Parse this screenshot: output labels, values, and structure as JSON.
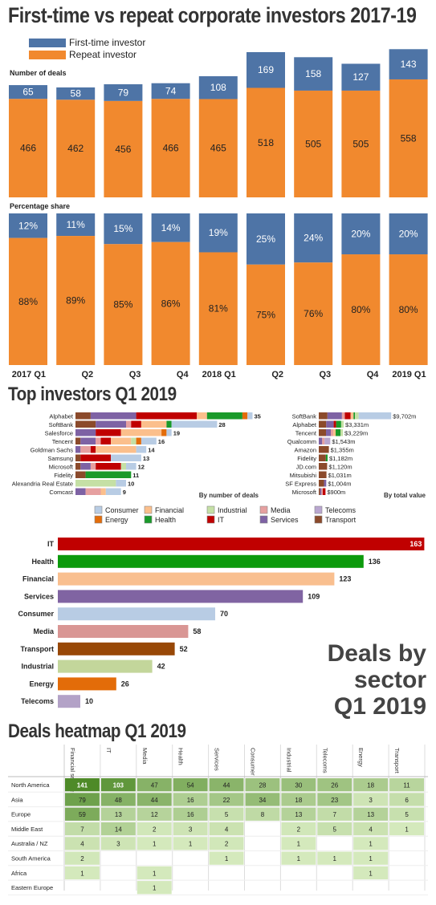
{
  "titles": {
    "main": "First-time vs repeat corporate investors 2017-19",
    "top_investors": "Top investors Q1 2019",
    "heatmap": "Deals heatmap Q1 2019",
    "deals_by_sector": [
      "Deals by",
      "sector",
      "Q1 2019"
    ]
  },
  "legend": {
    "first_time": "First-time investor",
    "repeat": "Repeat investor",
    "first_color": "#4e74a6",
    "repeat_color": "#f1892e"
  },
  "chart_data": [
    {
      "type": "bar",
      "subtitle": "Number of deals",
      "categories": [
        "2017 Q1",
        "Q2",
        "Q3",
        "Q4",
        "2018 Q1",
        "Q2",
        "Q3",
        "Q4",
        "2019 Q1"
      ],
      "series": [
        {
          "name": "First-time investor",
          "values": [
            65,
            58,
            79,
            74,
            108,
            169,
            158,
            127,
            143
          ]
        },
        {
          "name": "Repeat investor",
          "values": [
            466,
            462,
            456,
            466,
            465,
            518,
            505,
            505,
            558
          ]
        }
      ],
      "stacked": true
    },
    {
      "type": "bar",
      "subtitle": "Percentage share",
      "categories": [
        "2017 Q1",
        "Q2",
        "Q3",
        "Q4",
        "2018 Q1",
        "Q2",
        "Q3",
        "Q4",
        "2019 Q1"
      ],
      "series": [
        {
          "name": "First-time investor",
          "values": [
            "12%",
            "11%",
            "15%",
            "14%",
            "19%",
            "25%",
            "24%",
            "20%",
            "20%"
          ]
        },
        {
          "name": "Repeat investor",
          "values": [
            "88%",
            "89%",
            "85%",
            "86%",
            "81%",
            "75%",
            "76%",
            "80%",
            "80%"
          ]
        }
      ],
      "stacked": true,
      "ylim": [
        0,
        100
      ]
    },
    {
      "type": "bar",
      "orientation": "horizontal",
      "caption": "By number of deals",
      "categories": [
        "Alphabet",
        "SoftBank",
        "Salesforce",
        "Tencent",
        "Goldman Sachs",
        "Samsung",
        "Microsoft",
        "Fidelity",
        "Alexandria Real Estate",
        "Comcast"
      ],
      "values": [
        35,
        28,
        19,
        16,
        14,
        13,
        12,
        11,
        10,
        9
      ]
    },
    {
      "type": "bar",
      "orientation": "horizontal",
      "caption": "By total value",
      "categories": [
        "SoftBank",
        "Alphabet",
        "Tencent",
        "Qualcomm",
        "Amazon",
        "Fidelity",
        "JD.com",
        "Mitsubishi",
        "SF Express",
        "Microsoft"
      ],
      "value_labels": [
        "$9,702m",
        "$3,331m",
        "$3,229m",
        "$1,543m",
        "$1,355m",
        "$1,182m",
        "$1,120m",
        "$1,031m",
        "$1,004m",
        "$900m"
      ],
      "values": [
        9702,
        3331,
        3229,
        1543,
        1355,
        1182,
        1120,
        1031,
        1004,
        900
      ]
    },
    {
      "type": "bar",
      "orientation": "horizontal",
      "categories": [
        "IT",
        "Health",
        "Financial",
        "Services",
        "Consumer",
        "Media",
        "Transport",
        "Industrial",
        "Energy",
        "Telecoms"
      ],
      "values": [
        163,
        136,
        123,
        109,
        70,
        58,
        52,
        42,
        26,
        10
      ]
    },
    {
      "type": "heatmap",
      "columns": [
        "Financial services",
        "IT",
        "Media",
        "Health",
        "Services",
        "Consumer",
        "Industrial",
        "Telecoms",
        "Energy",
        "Transport"
      ],
      "rows": [
        "North America",
        "Asia",
        "Europe",
        "Middle East",
        "Australia / NZ",
        "South America",
        "Africa",
        "Eastern Europe"
      ],
      "values": [
        [
          141,
          103,
          47,
          54,
          44,
          28,
          30,
          26,
          18,
          11
        ],
        [
          79,
          48,
          44,
          16,
          22,
          34,
          18,
          23,
          3,
          6
        ],
        [
          59,
          13,
          12,
          16,
          5,
          8,
          13,
          7,
          13,
          5
        ],
        [
          7,
          14,
          2,
          3,
          4,
          null,
          2,
          5,
          4,
          1
        ],
        [
          4,
          3,
          1,
          1,
          2,
          null,
          1,
          null,
          1,
          null
        ],
        [
          2,
          null,
          null,
          null,
          1,
          null,
          1,
          1,
          1,
          null
        ],
        [
          1,
          null,
          1,
          null,
          null,
          null,
          null,
          null,
          1,
          null
        ],
        [
          null,
          null,
          1,
          null,
          null,
          null,
          null,
          null,
          null,
          null
        ]
      ]
    }
  ],
  "sector_legend": [
    {
      "name": "Consumer",
      "color": "#b8cce4"
    },
    {
      "name": "Financial",
      "color": "#fbbf8c"
    },
    {
      "name": "Industrial",
      "color": "#c5e0a5"
    },
    {
      "name": "Media",
      "color": "#e6a0a0"
    },
    {
      "name": "Telecoms",
      "color": "#b9a6cf"
    },
    {
      "name": "Energy",
      "color": "#e36c0a"
    },
    {
      "name": "Health",
      "color": "#1a9a2a"
    },
    {
      "name": "IT",
      "color": "#c00000"
    },
    {
      "name": "Services",
      "color": "#7e62a4"
    },
    {
      "name": "Transport",
      "color": "#8b4a2b"
    }
  ],
  "sector_colors": {
    "IT": "#c00000",
    "Health": "#0c9a0c",
    "Financial": "#f9bf8f",
    "Services": "#8064a2",
    "Consumer": "#b8cce4",
    "Media": "#d99694",
    "Transport": "#984807",
    "Industrial": "#c3d69b",
    "Energy": "#e36c09",
    "Telecoms": "#b3a2c7"
  }
}
